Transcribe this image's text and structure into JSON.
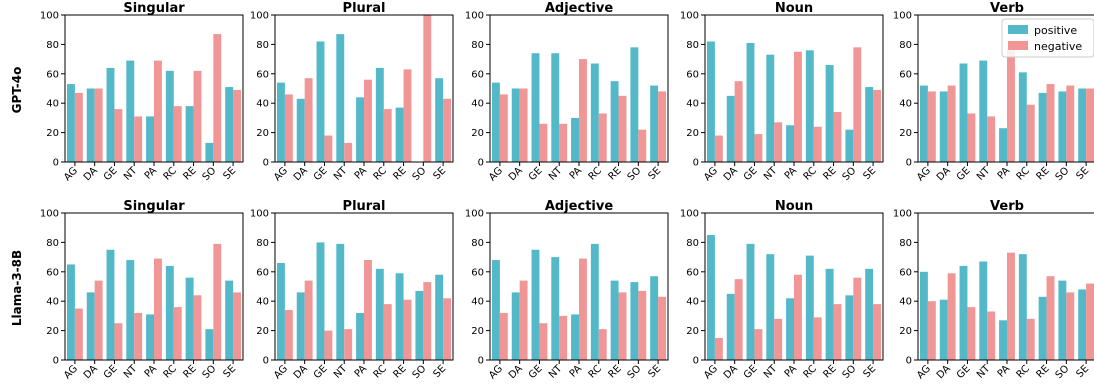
{
  "colors": {
    "positive": "#53b9c9",
    "negative": "#f09696"
  },
  "row_labels": [
    "GPT-4o",
    "Llama-3-8B"
  ],
  "legend": [
    "positive",
    "negative"
  ],
  "chart_data": [
    {
      "type": "bar",
      "title": "Singular",
      "row": "GPT-4o",
      "ylim": [
        0,
        100
      ],
      "yticks": [
        0,
        20,
        40,
        60,
        80,
        100
      ],
      "categories": [
        "AG",
        "DA",
        "GE",
        "NT",
        "PA",
        "RC",
        "RE",
        "SO",
        "SE"
      ],
      "series": [
        {
          "name": "positive",
          "values": [
            53,
            50,
            64,
            69,
            31,
            62,
            38,
            13,
            51
          ]
        },
        {
          "name": "negative",
          "values": [
            47,
            50,
            36,
            31,
            69,
            38,
            62,
            87,
            49
          ]
        }
      ]
    },
    {
      "type": "bar",
      "title": "Plural",
      "row": "GPT-4o",
      "ylim": [
        0,
        100
      ],
      "yticks": [
        0,
        20,
        40,
        60,
        80,
        100
      ],
      "categories": [
        "AG",
        "DA",
        "GE",
        "NT",
        "PA",
        "RC",
        "RE",
        "SO",
        "SE"
      ],
      "series": [
        {
          "name": "positive",
          "values": [
            54,
            43,
            82,
            87,
            44,
            64,
            37,
            0,
            57
          ]
        },
        {
          "name": "negative",
          "values": [
            46,
            57,
            18,
            13,
            56,
            36,
            63,
            100,
            43
          ]
        }
      ]
    },
    {
      "type": "bar",
      "title": "Adjective",
      "row": "GPT-4o",
      "ylim": [
        0,
        100
      ],
      "yticks": [
        0,
        20,
        40,
        60,
        80,
        100
      ],
      "categories": [
        "AG",
        "DA",
        "GE",
        "NT",
        "PA",
        "RC",
        "RE",
        "SO",
        "SE"
      ],
      "series": [
        {
          "name": "positive",
          "values": [
            54,
            50,
            74,
            74,
            30,
            67,
            55,
            78,
            52
          ]
        },
        {
          "name": "negative",
          "values": [
            46,
            50,
            26,
            26,
            70,
            33,
            45,
            22,
            48
          ]
        }
      ]
    },
    {
      "type": "bar",
      "title": "Noun",
      "row": "GPT-4o",
      "ylim": [
        0,
        100
      ],
      "yticks": [
        0,
        20,
        40,
        60,
        80,
        100
      ],
      "categories": [
        "AG",
        "DA",
        "GE",
        "NT",
        "PA",
        "RC",
        "RE",
        "SO",
        "SE"
      ],
      "series": [
        {
          "name": "positive",
          "values": [
            82,
            45,
            81,
            73,
            25,
            76,
            66,
            22,
            51
          ]
        },
        {
          "name": "negative",
          "values": [
            18,
            55,
            19,
            27,
            75,
            24,
            34,
            78,
            49
          ]
        }
      ]
    },
    {
      "type": "bar",
      "title": "Verb",
      "row": "GPT-4o",
      "ylim": [
        0,
        100
      ],
      "yticks": [
        0,
        20,
        40,
        60,
        80,
        100
      ],
      "categories": [
        "AG",
        "DA",
        "GE",
        "NT",
        "PA",
        "RC",
        "RE",
        "SO",
        "SE"
      ],
      "legend_position": "top-right",
      "series": [
        {
          "name": "positive",
          "values": [
            52,
            48,
            67,
            69,
            23,
            61,
            47,
            48,
            50
          ]
        },
        {
          "name": "negative",
          "values": [
            48,
            52,
            33,
            31,
            77,
            39,
            53,
            52,
            50
          ]
        }
      ]
    },
    {
      "type": "bar",
      "title": "Singular",
      "row": "Llama-3-8B",
      "ylim": [
        0,
        100
      ],
      "yticks": [
        0,
        20,
        40,
        60,
        80,
        100
      ],
      "categories": [
        "AG",
        "DA",
        "GE",
        "NT",
        "PA",
        "RC",
        "RE",
        "SO",
        "SE"
      ],
      "series": [
        {
          "name": "positive",
          "values": [
            65,
            46,
            75,
            68,
            31,
            64,
            56,
            21,
            54
          ]
        },
        {
          "name": "negative",
          "values": [
            35,
            54,
            25,
            32,
            69,
            36,
            44,
            79,
            46
          ]
        }
      ]
    },
    {
      "type": "bar",
      "title": "Plural",
      "row": "Llama-3-8B",
      "ylim": [
        0,
        100
      ],
      "yticks": [
        0,
        20,
        40,
        60,
        80,
        100
      ],
      "categories": [
        "AG",
        "DA",
        "GE",
        "NT",
        "PA",
        "RC",
        "RE",
        "SO",
        "SE"
      ],
      "series": [
        {
          "name": "positive",
          "values": [
            66,
            46,
            80,
            79,
            32,
            62,
            59,
            47,
            58
          ]
        },
        {
          "name": "negative",
          "values": [
            34,
            54,
            20,
            21,
            68,
            38,
            41,
            53,
            42
          ]
        }
      ]
    },
    {
      "type": "bar",
      "title": "Adjective",
      "row": "Llama-3-8B",
      "ylim": [
        0,
        100
      ],
      "yticks": [
        0,
        20,
        40,
        60,
        80,
        100
      ],
      "categories": [
        "AG",
        "DA",
        "GE",
        "NT",
        "PA",
        "RC",
        "RE",
        "SO",
        "SE"
      ],
      "series": [
        {
          "name": "positive",
          "values": [
            68,
            46,
            75,
            70,
            31,
            79,
            54,
            53,
            57
          ]
        },
        {
          "name": "negative",
          "values": [
            32,
            54,
            25,
            30,
            69,
            21,
            46,
            47,
            43
          ]
        }
      ]
    },
    {
      "type": "bar",
      "title": "Noun",
      "row": "Llama-3-8B",
      "ylim": [
        0,
        100
      ],
      "yticks": [
        0,
        20,
        40,
        60,
        80,
        100
      ],
      "categories": [
        "AG",
        "DA",
        "GE",
        "NT",
        "PA",
        "RC",
        "RE",
        "SO",
        "SE"
      ],
      "series": [
        {
          "name": "positive",
          "values": [
            85,
            45,
            79,
            72,
            42,
            71,
            62,
            44,
            62
          ]
        },
        {
          "name": "negative",
          "values": [
            15,
            55,
            21,
            28,
            58,
            29,
            38,
            56,
            38
          ]
        }
      ]
    },
    {
      "type": "bar",
      "title": "Verb",
      "row": "Llama-3-8B",
      "ylim": [
        0,
        100
      ],
      "yticks": [
        0,
        20,
        40,
        60,
        80,
        100
      ],
      "categories": [
        "AG",
        "DA",
        "GE",
        "NT",
        "PA",
        "RC",
        "RE",
        "SO",
        "SE"
      ],
      "series": [
        {
          "name": "positive",
          "values": [
            60,
            41,
            64,
            67,
            27,
            72,
            43,
            54,
            48
          ]
        },
        {
          "name": "negative",
          "values": [
            40,
            59,
            36,
            33,
            73,
            28,
            57,
            46,
            52
          ]
        }
      ]
    }
  ]
}
